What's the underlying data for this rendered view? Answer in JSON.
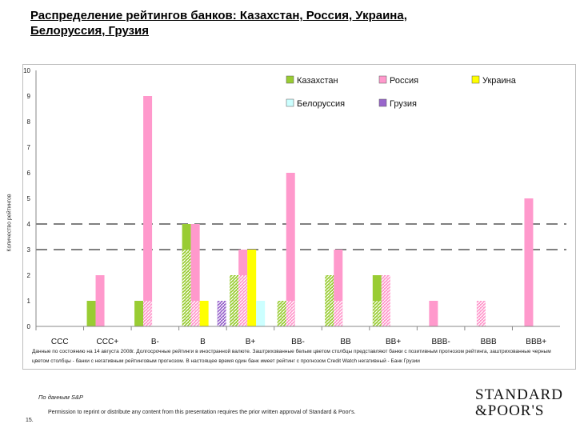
{
  "title": "Распределение рейтингов банков: Казахстан, Россия, Украина, \nБелоруссия, Грузия",
  "chart_data": {
    "type": "bar",
    "ylabel": "Количество рейтингов",
    "ylim": [
      0,
      10
    ],
    "yticks": [
      "0",
      "1",
      "2",
      "3",
      "4",
      "5",
      "6",
      "7",
      "8",
      "9",
      "10"
    ],
    "categories": [
      "CCC",
      "CCC+",
      "B-",
      "B",
      "B+",
      "BB-",
      "BB",
      "BB+",
      "BBB-",
      "BBB",
      "BBB+"
    ],
    "series": [
      {
        "name": "Казахстан",
        "color": "#99cc33",
        "values": [
          0,
          1,
          1,
          4,
          2,
          1,
          2,
          2,
          0,
          0,
          0
        ],
        "negative": [
          0,
          0,
          0,
          3,
          2,
          1,
          2,
          1,
          0,
          0,
          0
        ]
      },
      {
        "name": "Россия",
        "color": "#ff99cc",
        "values": [
          0,
          2,
          9,
          4,
          3,
          6,
          3,
          2,
          1,
          1,
          5
        ],
        "negative": [
          0,
          0,
          1,
          1,
          2,
          1,
          1,
          2,
          0,
          1,
          0
        ]
      },
      {
        "name": "Украина",
        "color": "#ffff00",
        "values": [
          0,
          0,
          0,
          1,
          3,
          0,
          0,
          0,
          0,
          0,
          0
        ],
        "negative": [
          0,
          0,
          0,
          0,
          0,
          0,
          0,
          0,
          0,
          0,
          0
        ]
      },
      {
        "name": "Белоруссия",
        "color": "#ccffff",
        "values": [
          0,
          0,
          0,
          0,
          1,
          0,
          0,
          0,
          0,
          0,
          0
        ],
        "negative": [
          0,
          0,
          0,
          0,
          0,
          0,
          0,
          0,
          0,
          0,
          0
        ]
      },
      {
        "name": "Грузия",
        "color": "#9966cc",
        "values": [
          0,
          0,
          0,
          1,
          0,
          0,
          0,
          0,
          0,
          0,
          0
        ],
        "negative": [
          0,
          0,
          0,
          1,
          0,
          0,
          0,
          0,
          0,
          0,
          0
        ]
      }
    ],
    "dashed_lines_at": [
      3,
      4
    ],
    "legend": "top-right"
  },
  "note": "Данные по состоянию на 14 августа 2008г. Долгосрочные рейтинги в иностранной валюте. Заштрихованные белым цветом столбцы представляют банки с позитивным прогнозом рейтинга, заштрихованные черным цветом столбцы - банки с негативным рейтинговым прогнозом. В настоящее время один банк имеет рейтинг с прогнозом Credit Watch негативный - Банк Грузии",
  "source": "По данным S&P",
  "page_number": "15.",
  "footer": "Permission to reprint or distribute any content from this presentation requires the prior written approval of Standard & Poor's.",
  "logo_text": [
    "STANDARD",
    "&POOR'S"
  ]
}
